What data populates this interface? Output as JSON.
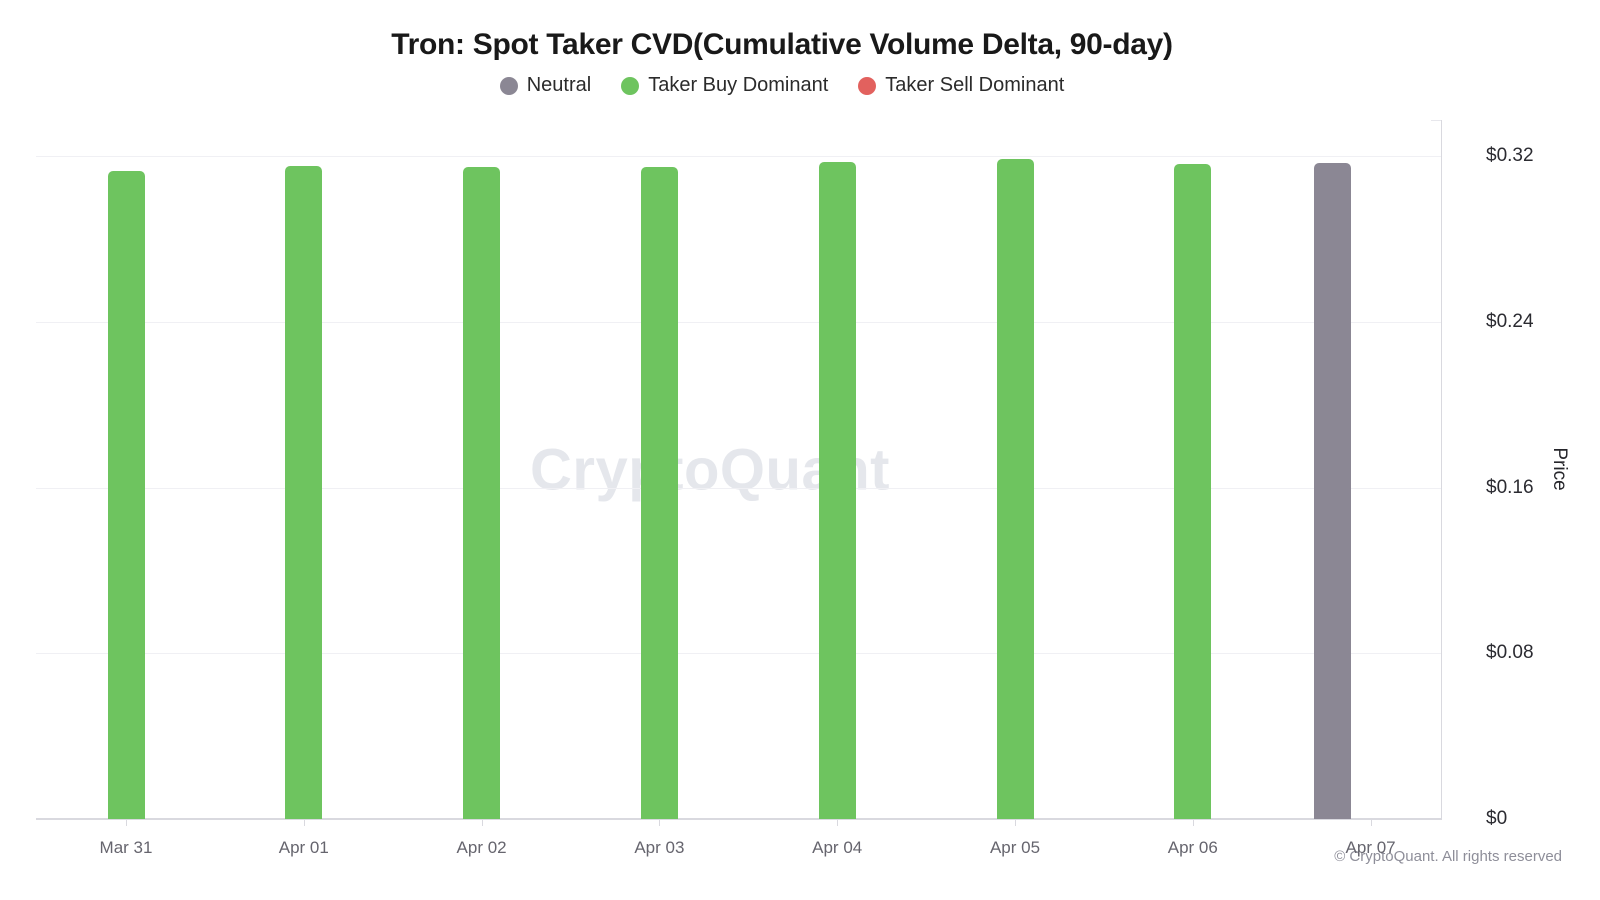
{
  "title": "Tron: Spot Taker CVD(Cumulative Volume Delta, 90-day)",
  "watermark": "CryptoQuant",
  "footer": "© CryptoQuant. All rights reserved",
  "legend": [
    {
      "key": "neutral",
      "label": "Neutral",
      "color": "#8b8794"
    },
    {
      "key": "taker_buy",
      "label": "Taker Buy Dominant",
      "color": "#6ec45f"
    },
    {
      "key": "taker_sell",
      "label": "Taker Sell Dominant",
      "color": "#e2615e"
    }
  ],
  "chart_data": {
    "type": "bar",
    "title": "Tron: Spot Taker CVD(Cumulative Volume Delta, 90-day)",
    "categories": [
      "Mar 31",
      "Apr 01",
      "Apr 02",
      "Apr 03",
      "Apr 04",
      "Apr 05",
      "Apr 06",
      "Apr 07"
    ],
    "series": [
      {
        "name": "Price",
        "values": [
          0.313,
          0.315,
          0.3148,
          0.3148,
          0.317,
          0.3185,
          0.316,
          0.3165
        ]
      }
    ],
    "point_status": [
      "taker_buy",
      "taker_buy",
      "taker_buy",
      "taker_buy",
      "taker_buy",
      "taker_buy",
      "taker_buy",
      "neutral"
    ],
    "status_colors": {
      "neutral": "#8b8794",
      "taker_buy": "#6ec45f",
      "taker_sell": "#e2615e"
    },
    "xlabel": "",
    "ylabel": "Price",
    "y_ticks": [
      "$0",
      "$0.08",
      "$0.16",
      "$0.24",
      "$0.32"
    ],
    "y_tick_values": [
      0,
      0.08,
      0.16,
      0.24,
      0.32
    ],
    "ylim": [
      0,
      0.32
    ],
    "grid": true,
    "legend_position": "top",
    "y_axis_side": "right"
  }
}
